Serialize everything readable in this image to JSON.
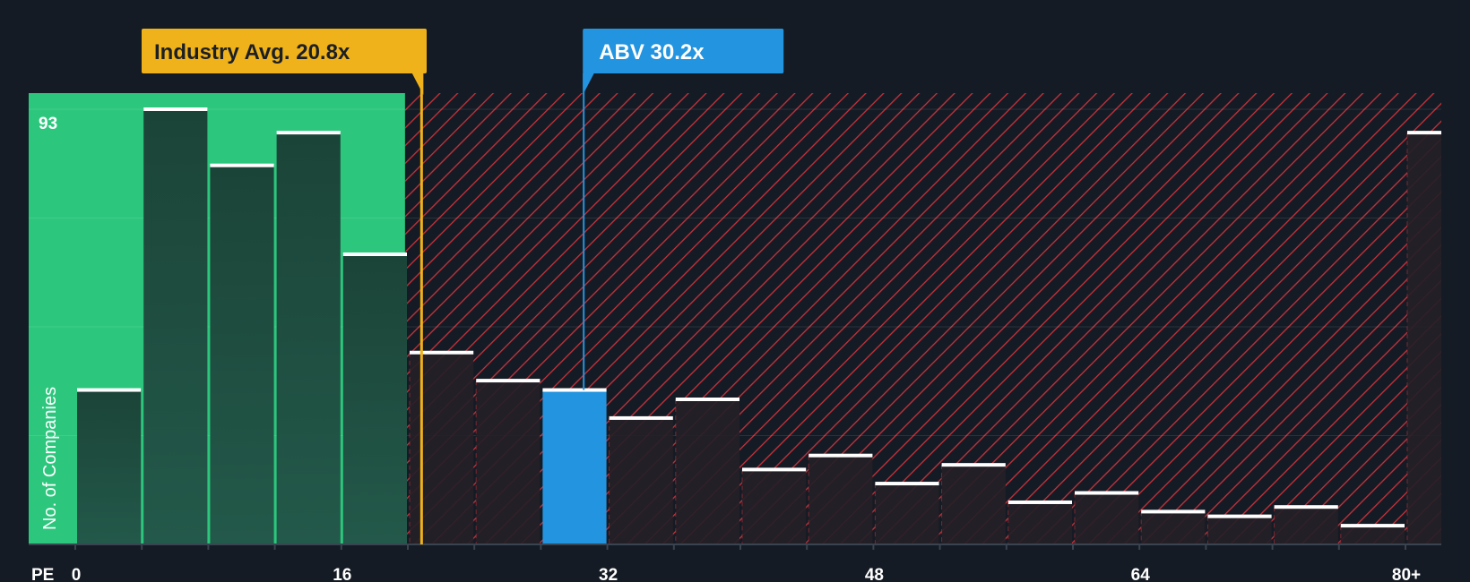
{
  "chart_data": {
    "type": "bar",
    "ylabel": "No. of Companies",
    "xaxis_prefix": "PE",
    "ymax_label": "93",
    "ylim": [
      0,
      93
    ],
    "bin_width": 4,
    "x_ticks": [
      "0",
      "16",
      "32",
      "48",
      "64",
      "80+"
    ],
    "x_tick_values": [
      0,
      16,
      32,
      48,
      64,
      80
    ],
    "bins": [
      {
        "start": 0,
        "value": 33
      },
      {
        "start": 4,
        "value": 93
      },
      {
        "start": 8,
        "value": 81
      },
      {
        "start": 12,
        "value": 88
      },
      {
        "start": 16,
        "value": 62
      },
      {
        "start": 20,
        "value": 41
      },
      {
        "start": 24,
        "value": 35
      },
      {
        "start": 28,
        "value": 33
      },
      {
        "start": 32,
        "value": 27
      },
      {
        "start": 36,
        "value": 31
      },
      {
        "start": 40,
        "value": 16
      },
      {
        "start": 44,
        "value": 19
      },
      {
        "start": 48,
        "value": 13
      },
      {
        "start": 52,
        "value": 17
      },
      {
        "start": 56,
        "value": 9
      },
      {
        "start": 60,
        "value": 11
      },
      {
        "start": 64,
        "value": 7
      },
      {
        "start": 68,
        "value": 6
      },
      {
        "start": 72,
        "value": 8
      },
      {
        "start": 76,
        "value": 4
      },
      {
        "start": 80,
        "value": 88
      }
    ],
    "fair_range": [
      0,
      20.8
    ],
    "industry_avg": {
      "label": "Industry Avg. 20.8x",
      "value": 20.8
    },
    "company": {
      "label": "ABV 30.2x",
      "value": 30.2,
      "bin_start": 28
    },
    "colors": {
      "background": "#151b24",
      "fair_zone": "#2cc77d",
      "fair_bar": "#1c4a3d",
      "over_bar": "#251f27",
      "hatch": "#c8323c",
      "company_bar": "#2394e0",
      "industry_callout": "#f0b21a",
      "company_callout": "#2394e0",
      "bar_cap": "#ffffff"
    }
  }
}
